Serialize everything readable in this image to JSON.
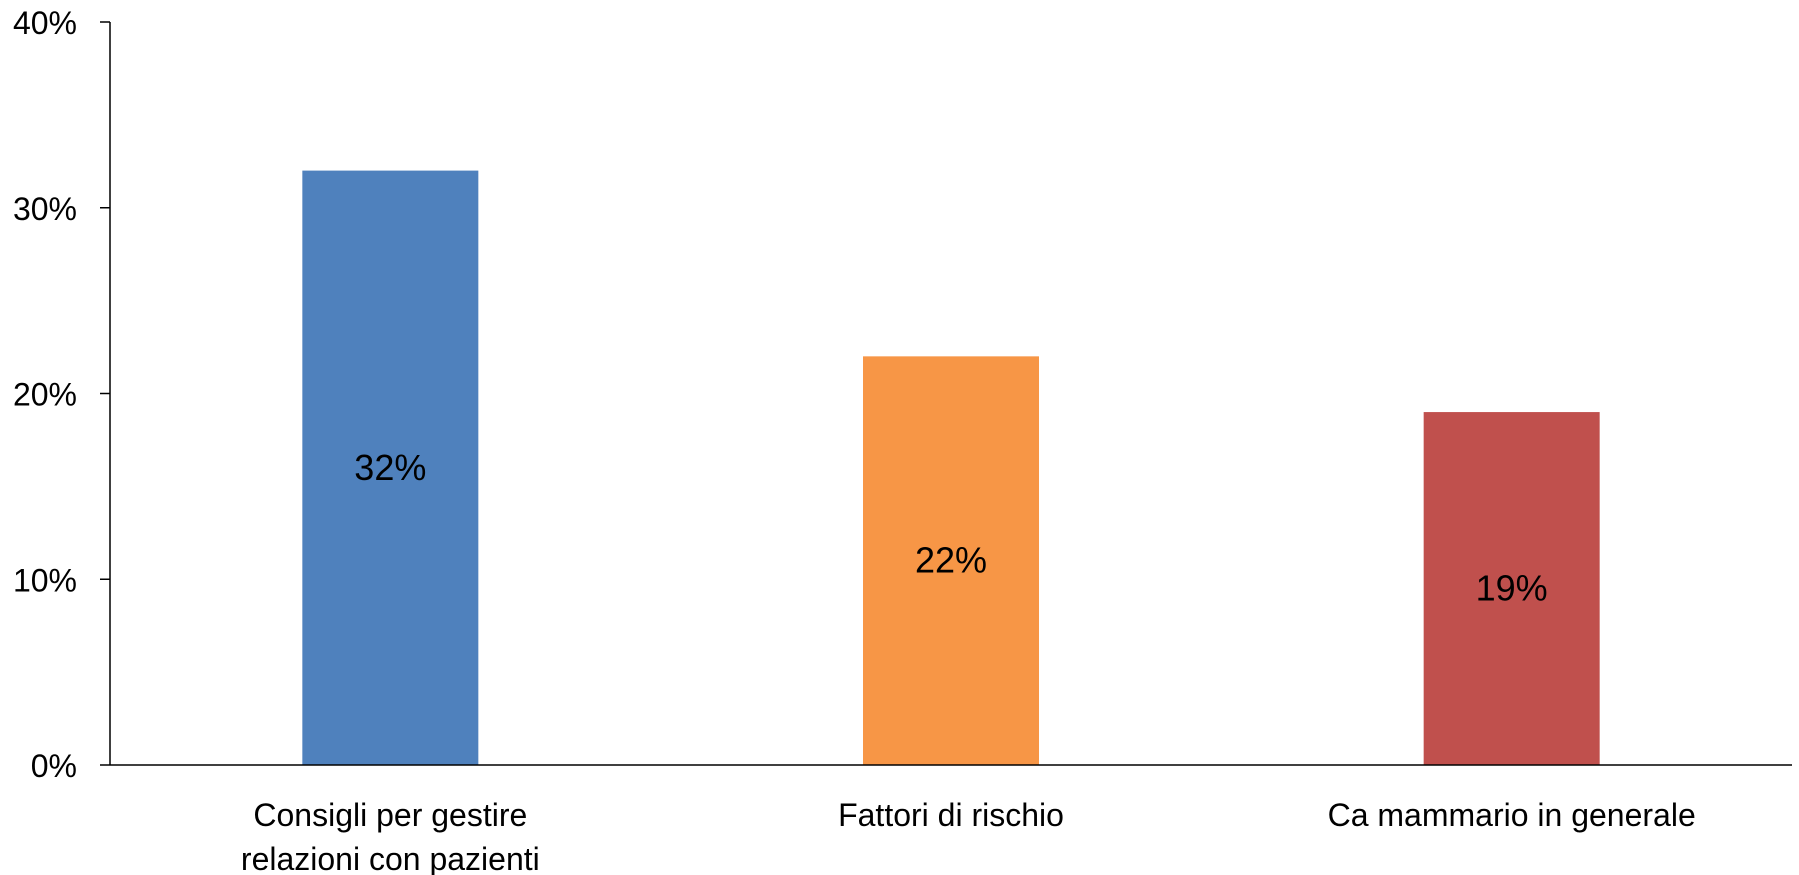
{
  "chart_data": {
    "type": "bar",
    "categories": [
      [
        "Consigli per gestire",
        "relazioni con pazienti"
      ],
      [
        "Fattori di rischio"
      ],
      [
        "Ca mammario in generale"
      ]
    ],
    "values": [
      32,
      22,
      19
    ],
    "data_labels": [
      "32%",
      "22%",
      "19%"
    ],
    "colors": [
      "#4f81bd",
      "#f79646",
      "#c0504d"
    ],
    "ylim": [
      0,
      40
    ],
    "yticks": [
      0,
      10,
      20,
      30,
      40
    ],
    "ytick_labels": [
      "0%",
      "10%",
      "20%",
      "30%",
      "40%"
    ],
    "grid": false,
    "legend": "none"
  }
}
